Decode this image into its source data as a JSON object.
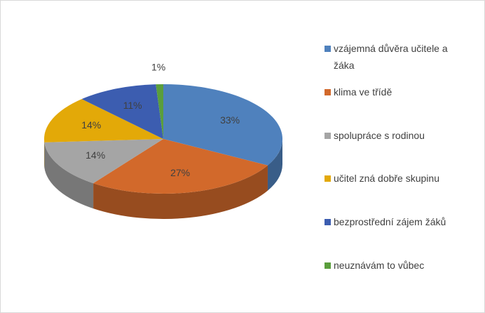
{
  "chart_data": {
    "type": "pie",
    "categories": [
      "vzájemná důvěra učitele a žáka",
      "klima ve třídě",
      "spolupráce s rodinou",
      "učitel zná dobře skupinu",
      "bezprostřední zájem žáků",
      "neuznávám to vůbec"
    ],
    "values": [
      33,
      27,
      14,
      14,
      11,
      1
    ],
    "value_labels": [
      "33%",
      "27%",
      "14%",
      "14%",
      "11%",
      "1%"
    ],
    "colors": [
      "#4f81bd",
      "#d2692b",
      "#a5a5a5",
      "#e3a908",
      "#3c5db0",
      "#5a9e3c"
    ],
    "legend": "right"
  }
}
